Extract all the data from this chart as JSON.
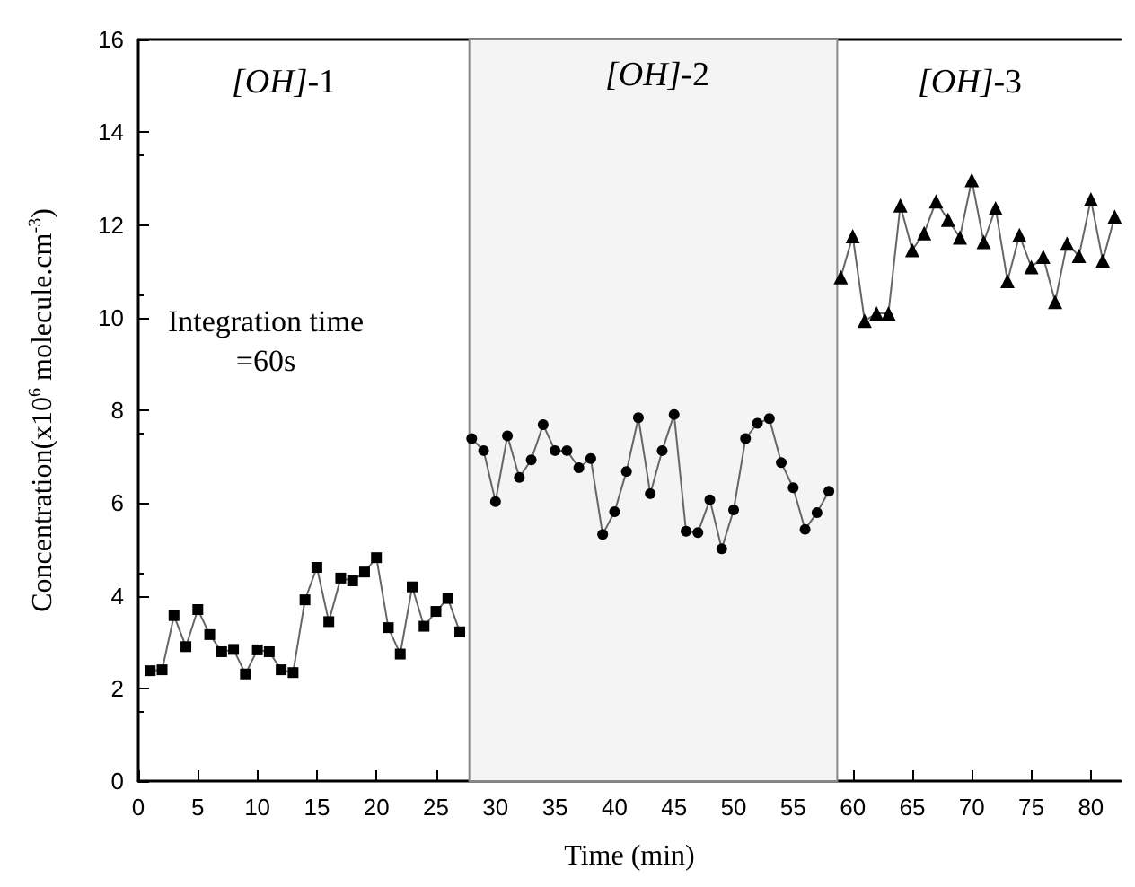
{
  "chart_data": {
    "type": "line",
    "xlabel": "Time (min)",
    "ylabel": "Concentration(x10$^{6}$ molecule.cm$^{-3}$)",
    "xlim": [
      0,
      82.5
    ],
    "xticks": [
      0,
      5,
      10,
      15,
      20,
      25,
      30,
      35,
      40,
      45,
      50,
      55,
      60,
      65,
      70,
      75,
      80
    ],
    "ylim": [
      0,
      16
    ],
    "yticks": [
      0,
      2,
      4,
      6,
      8,
      10,
      12,
      14,
      16
    ],
    "series": [
      {
        "color": "#000000",
        "marker": "square",
        "x": [
          1,
          2,
          3,
          4,
          5,
          6,
          7,
          8,
          9,
          10,
          11,
          12,
          13,
          14,
          15,
          16,
          17,
          18,
          19,
          20,
          21,
          22,
          23,
          24,
          25,
          26,
          27
        ],
        "values": [
          2.38,
          2.4,
          3.57,
          2.9,
          3.7,
          3.16,
          2.79,
          2.84,
          2.31,
          2.83,
          2.79,
          2.4,
          2.34,
          3.91,
          4.61,
          3.44,
          4.38,
          4.32,
          4.51,
          4.82,
          3.31,
          2.74,
          4.19,
          3.34,
          3.66,
          3.94,
          3.22
        ]
      },
      {
        "color": "#000000",
        "marker": "circle",
        "x": [
          28,
          29,
          30,
          31,
          32,
          33,
          34,
          35,
          36,
          37,
          38,
          39,
          40,
          41,
          42,
          43,
          44,
          45,
          46,
          47,
          48,
          49,
          50,
          51,
          52,
          53,
          54,
          55,
          56,
          57,
          58
        ],
        "values": [
          7.39,
          7.13,
          6.03,
          7.45,
          6.55,
          6.93,
          7.69,
          7.13,
          7.13,
          6.76,
          6.96,
          5.32,
          5.81,
          6.68,
          7.84,
          6.2,
          7.13,
          7.91,
          5.39,
          5.36,
          6.07,
          5.01,
          5.85,
          7.39,
          7.72,
          7.82,
          6.87,
          6.33,
          5.43,
          5.79,
          6.25
        ]
      },
      {
        "color": "#000000",
        "marker": "triangle",
        "x": [
          59,
          60,
          61,
          62,
          63,
          64,
          65,
          66,
          67,
          68,
          69,
          70,
          71,
          72,
          73,
          74,
          75,
          76,
          77,
          78,
          79,
          80,
          81,
          82
        ],
        "values": [
          10.87,
          11.76,
          9.93,
          10.09,
          10.09,
          12.42,
          11.46,
          11.82,
          12.51,
          12.11,
          11.73,
          12.97,
          11.63,
          12.36,
          10.79,
          11.78,
          11.09,
          11.31,
          10.34,
          11.6,
          11.33,
          12.55,
          11.23,
          12.18
        ]
      }
    ],
    "bands": [
      {
        "axis": "x",
        "from": 27.8,
        "to": 58.7,
        "color": "#f4f4f4"
      }
    ],
    "annotations": [
      "[OH]-1",
      "[OH]-2",
      "[OH]-3",
      "Integration time\n=60s"
    ]
  }
}
